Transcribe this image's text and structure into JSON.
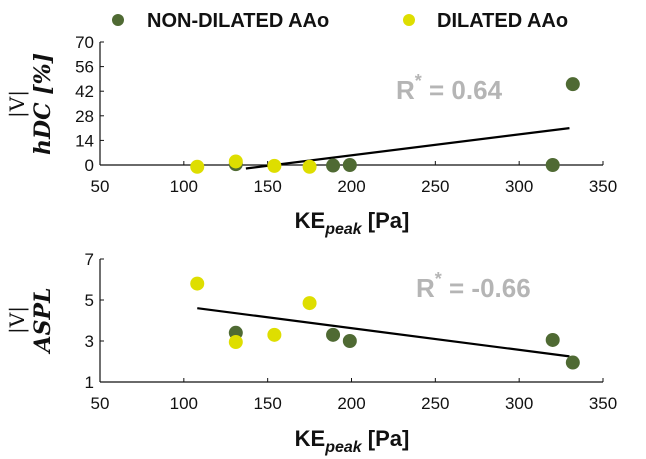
{
  "colors": {
    "non_dilated": "#4f6a33",
    "dilated": "#dede00",
    "annotation": "#b5b5b5",
    "axis": "#111111"
  },
  "legend": {
    "non_dilated_label": "NON-DILATED AAo",
    "dilated_label": "DILATED AAo",
    "placement": "top"
  },
  "chart_data": [
    {
      "type": "scatter",
      "title": "",
      "xlabel_main": "KE",
      "xlabel_sub": "peak",
      "xlabel_unit": " [Pa]",
      "ylabel_top": "|V|",
      "ylabel_main": "hDC [%]",
      "xlim": [
        50,
        350
      ],
      "ylim": [
        0,
        70
      ],
      "xticks": [
        "50",
        "100",
        "150",
        "200",
        "250",
        "300",
        "350"
      ],
      "yticks": [
        "0",
        "14",
        "28",
        "42",
        "56",
        "70"
      ],
      "annotation": {
        "r_text": "R",
        "star": "*",
        "value_text": " = 0.64"
      },
      "series": [
        {
          "name": "NON-DILATED AAo",
          "points": [
            [
              131,
              0.5
            ],
            [
              189,
              -0.3
            ],
            [
              199,
              0
            ],
            [
              320,
              0
            ],
            [
              332,
              46
            ]
          ]
        },
        {
          "name": "DILATED AAo",
          "points": [
            [
              108,
              -1
            ],
            [
              131,
              2
            ],
            [
              154,
              -0.5
            ],
            [
              175,
              -1
            ]
          ]
        }
      ],
      "fit": [
        [
          137,
          -2
        ],
        [
          330,
          21
        ]
      ]
    },
    {
      "type": "scatter",
      "title": "",
      "xlabel_main": "KE",
      "xlabel_sub": "peak",
      "xlabel_unit": " [Pa]",
      "ylabel_top": "|V|",
      "ylabel_main": "ASPL",
      "xlim": [
        50,
        350
      ],
      "ylim": [
        1,
        7
      ],
      "xticks": [
        "50",
        "100",
        "150",
        "200",
        "250",
        "300",
        "350"
      ],
      "yticks": [
        "1",
        "3",
        "5",
        "7"
      ],
      "annotation": {
        "r_text": "R",
        "star": "*",
        "value_text": " = -0.66"
      },
      "series": [
        {
          "name": "NON-DILATED AAo",
          "points": [
            [
              131,
              3.4
            ],
            [
              189,
              3.3
            ],
            [
              199,
              3.0
            ],
            [
              320,
              3.05
            ],
            [
              332,
              1.95
            ]
          ]
        },
        {
          "name": "DILATED AAo",
          "points": [
            [
              108,
              5.8
            ],
            [
              131,
              2.95
            ],
            [
              154,
              3.3
            ],
            [
              175,
              4.85
            ]
          ]
        }
      ],
      "fit": [
        [
          108,
          4.6
        ],
        [
          330,
          2.25
        ]
      ]
    }
  ]
}
